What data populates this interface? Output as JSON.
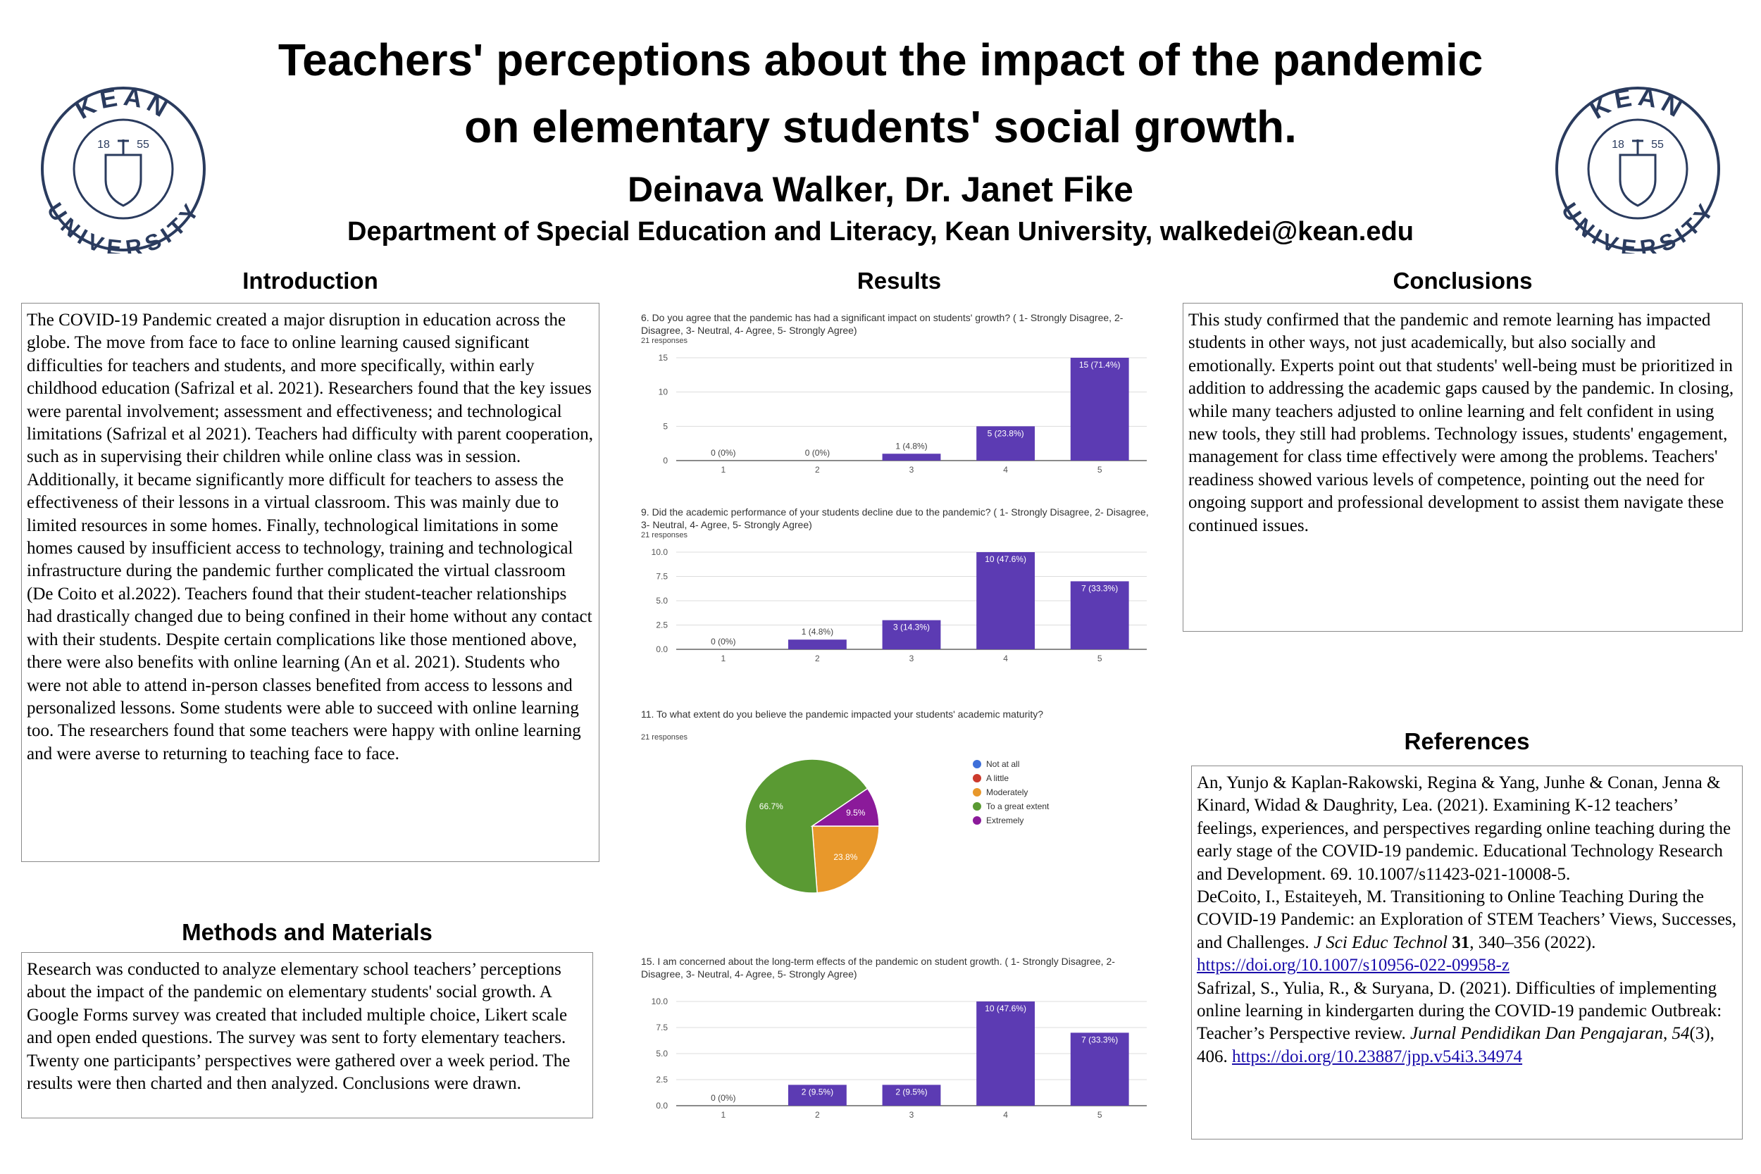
{
  "header": {
    "title_line1": "Teachers' perceptions about the impact of the pandemic",
    "title_line2": "on elementary students' social growth.",
    "authors": "Deinava Walker, Dr. Janet Fike",
    "affiliation": "Department of Special Education and Literacy, Kean University, walkedei@kean.edu"
  },
  "logo": {
    "top": "KEAN",
    "bottom": "UNIVERSITY",
    "year_left": "18",
    "year_right": "55"
  },
  "introduction": {
    "heading": "Introduction",
    "text": "The COVID-19 Pandemic created a major disruption in education across the globe. The move from face to face to online learning caused significant difficulties for teachers and students, and more specifically, within early childhood education (Safrizal et al. 2021). Researchers found that the key issues were parental involvement; assessment and effectiveness; and technological limitations (Safrizal et al 2021). Teachers had difficulty with parent cooperation, such as in supervising their children while online class was in session. Additionally, it became significantly more difficult for teachers to assess the effectiveness of their lessons in a virtual classroom. This was mainly due to limited resources in some homes. Finally, technological limitations in some homes caused by insufficient access to technology, training and technological infrastructure during the pandemic further complicated the virtual classroom (De Coito et al.2022).  Teachers found that their student-teacher relationships had drastically changed due to being confined in their home without any contact with their students. Despite certain complications like those mentioned above, there were also benefits with online learning (An et al. 2021). Students who were not able to attend in-person classes benefited from access to lessons and personalized lessons. Some students were able to succeed with online learning too. The researchers found that some teachers were happy with online learning and were averse to returning to teaching face to face."
  },
  "methods": {
    "heading": "Methods and Materials",
    "text": "Research was conducted to analyze elementary school teachers’ perceptions about the impact of the pandemic on elementary students' social growth.  A Google Forms survey was created that included multiple choice, Likert scale and open ended questions. The survey was sent to forty elementary teachers. Twenty one participants’ perspectives were gathered over a week period. The results were then charted and then analyzed. Conclusions were drawn."
  },
  "results": {
    "heading": "Results"
  },
  "conclusions": {
    "heading": "Conclusions",
    "text": "This study confirmed that the pandemic and remote learning has impacted students in other ways, not just academically, but also socially and emotionally. Experts point out that students' well-being must be prioritized in addition to addressing the academic gaps caused by the pandemic. In closing, while many teachers adjusted to online learning and felt confident in using new tools, they still had problems. Technology issues, students' engagement, management for class time effectively were among the problems. Teachers' readiness showed various levels of competence, pointing out the need for ongoing support and professional development to assist them navigate these continued issues."
  },
  "references": {
    "heading": "References",
    "items": [
      [
        {
          "text": "An, Yunjo & Kaplan-Rakowski, Regina & Yang, Junhe & Conan, Jenna & Kinard, Widad & Daughrity, Lea. (2021). Examining K-12 teachers’ feelings, experiences, and perspectives regarding online teaching during the early stage of the COVID-19 pandemic. Educational Technology Research and Development. 69. 10.1007/s11423-021-10008-5."
        }
      ],
      [
        {
          "text": "DeCoito, I., Estaiteyeh, M. Transitioning to Online Teaching During the COVID-19 Pandemic: an Exploration of STEM Teachers’ Views, Successes, and Challenges. "
        },
        {
          "text": "J Sci Educ Technol",
          "style": "italic"
        },
        {
          "text": " "
        },
        {
          "text": "31",
          "style": "bold"
        },
        {
          "text": ", 340–356 (2022). "
        },
        {
          "text": "https://doi.org/10.1007/s10956-022-09958-z",
          "style": "link"
        }
      ],
      [
        {
          "text": "Safrizal, S., Yulia, R., & Suryana, D. (2021). Difficulties of implementing online learning in kindergarten during the COVID-19 pandemic Outbreak: Teacher’s Perspective review. "
        },
        {
          "text": "Jurnal Pendidikan Dan Pengajaran",
          "style": "italic"
        },
        {
          "text": ", "
        },
        {
          "text": "54",
          "style": "italic"
        },
        {
          "text": "(3), 406. "
        },
        {
          "text": "https://doi.org/10.23887/jpp.v54i3.34974",
          "style": "link"
        }
      ]
    ]
  },
  "chart_data": [
    {
      "type": "bar",
      "title": "6. Do you agree that the pandemic has had a significant impact on students' growth?   ( 1- Strongly Disagree, 2- Disagree, 3- Neutral, 4- Agree, 5- Strongly Agree)",
      "subtitle": "21 responses",
      "categories": [
        "1",
        "2",
        "3",
        "4",
        "5"
      ],
      "values": [
        0,
        0,
        1,
        5,
        15
      ],
      "value_labels": [
        "0 (0%)",
        "0 (0%)",
        "1 (4.8%)",
        "5 (23.8%)",
        "15 (71.4%)"
      ],
      "color": "#5c3bb3",
      "ylim": [
        0,
        15
      ],
      "yticks": [
        0,
        5,
        10,
        15
      ],
      "grid": true
    },
    {
      "type": "bar",
      "title": "9. Did the academic performance of your students decline due to the pandemic?    ( 1- Strongly Disagree, 2- Disagree, 3- Neutral, 4- Agree, 5- Strongly Agree)",
      "subtitle": "21 responses",
      "categories": [
        "1",
        "2",
        "3",
        "4",
        "5"
      ],
      "values": [
        0,
        1,
        3,
        10,
        7
      ],
      "value_labels": [
        "0 (0%)",
        "1 (4.8%)",
        "3 (14.3%)",
        "10 (47.6%)",
        "7 (33.3%)"
      ],
      "color": "#5c3bb3",
      "ylim": [
        0,
        10
      ],
      "yticks": [
        {
          "value": 0,
          "label": "0.0"
        },
        {
          "value": 2.5,
          "label": "2.5"
        },
        {
          "value": 5,
          "label": "5.0"
        },
        {
          "value": 7.5,
          "label": "7.5"
        },
        {
          "value": 10,
          "label": "10.0"
        }
      ],
      "grid": true
    },
    {
      "type": "pie",
      "title": "11. To what extent do you believe the pandemic impacted your students' academic maturity?",
      "subtitle": "21 responses",
      "categories": [
        "Not at all",
        "A little",
        "Moderately",
        "To a great extent",
        "Extremely"
      ],
      "values": [
        0,
        0,
        23.8,
        66.7,
        9.5
      ],
      "value_labels": [
        null,
        null,
        "23.8%",
        "66.7%",
        "9.5%"
      ],
      "colors": [
        "#3e6fd9",
        "#cc3a2c",
        "#e8982b",
        "#5a9a33",
        "#8b1a9a"
      ]
    },
    {
      "type": "bar",
      "title": "15. I am concerned about the long-term effects of the pandemic on student growth.        ( 1- Strongly Disagree, 2- Disagree, 3- Neutral, 4- Agree, 5- Strongly Agree)",
      "categories": [
        "1",
        "2",
        "3",
        "4",
        "5"
      ],
      "values": [
        0,
        2,
        2,
        10,
        7
      ],
      "value_labels": [
        "0 (0%)",
        "2 (9.5%)",
        "2 (9.5%)",
        "10 (47.6%)",
        "7 (33.3%)"
      ],
      "color": "#5c3bb3",
      "ylim": [
        0,
        10
      ],
      "yticks": [
        {
          "value": 0,
          "label": "0.0"
        },
        {
          "value": 2.5,
          "label": "2.5"
        },
        {
          "value": 5,
          "label": "5.0"
        },
        {
          "value": 7.5,
          "label": "7.5"
        },
        {
          "value": 10,
          "label": "10.0"
        }
      ],
      "grid": true
    }
  ]
}
